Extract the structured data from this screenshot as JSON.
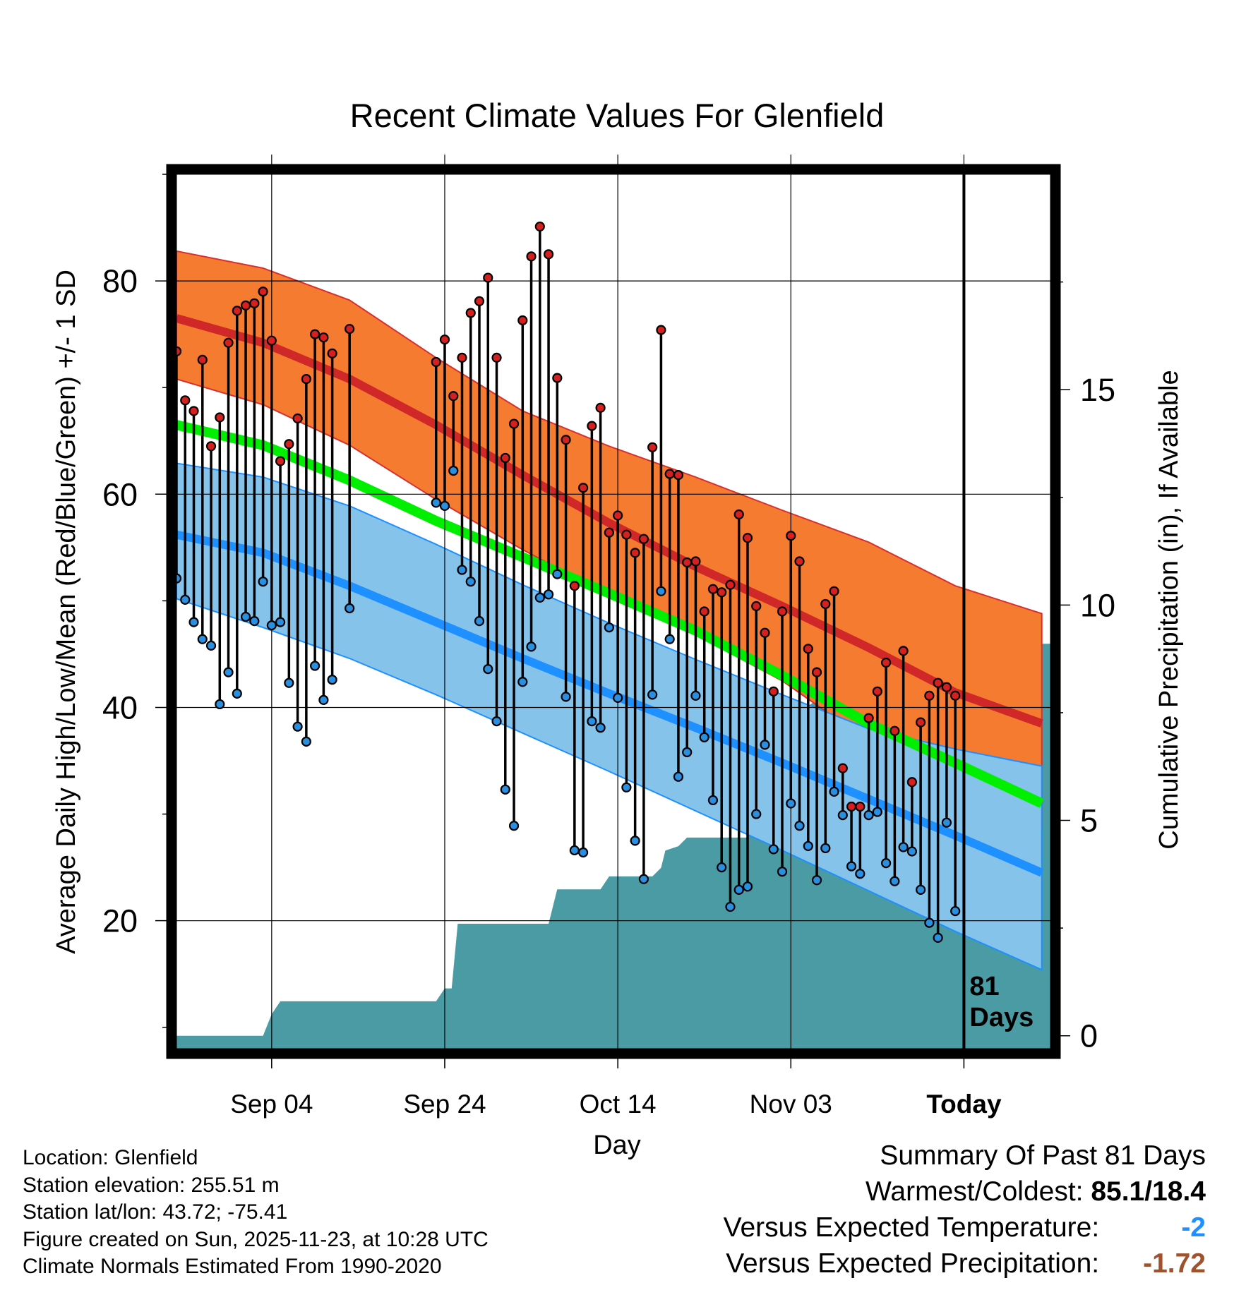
{
  "colors": {
    "high_band": "#F47B30",
    "high_mean": "#D02828",
    "mean_line": "#00EE00",
    "low_band": "#85C3EA",
    "low_mean": "#1E90FF",
    "precip_fill": "#4A9BA3",
    "high_dot": "#D62020",
    "low_dot": "#2A8FE0",
    "below_normal_text": "#1E90FF",
    "precip_deficit_text": "#A0522D"
  },
  "chart_data": {
    "type": "line",
    "title": "Recent Climate Values For Glenfield",
    "xlabel": "Day",
    "ylabel": "Average Daily High/Low/Mean (Red/Blue/Green) +/- 1 SD",
    "y2label": "Cumulative Precipitation (in), If Available",
    "ylim": [
      8,
      90
    ],
    "y2lim": [
      -0.3,
      20
    ],
    "y_ticks": [
      20,
      40,
      60,
      80
    ],
    "y2_ticks": [
      0,
      5,
      10,
      15
    ],
    "x_range": [
      0,
      101
    ],
    "x_ticks": [
      {
        "day": 11,
        "label": "Sep 04"
      },
      {
        "day": 31,
        "label": "Sep 24"
      },
      {
        "day": 51,
        "label": "Oct 14"
      },
      {
        "day": 71,
        "label": "Nov 03"
      },
      {
        "day": 91,
        "label": "Today"
      }
    ],
    "today_marker": {
      "day": 91,
      "label_line1": "81",
      "label_line2": "Days"
    },
    "normals": {
      "days": [
        0,
        10,
        20,
        30,
        40,
        50,
        60,
        70,
        80,
        90,
        100
      ],
      "high_mean": [
        76.5,
        74.2,
        70.8,
        66.5,
        61.8,
        57.3,
        53.2,
        49.5,
        45.6,
        41.4,
        38.5
      ],
      "high_upper": [
        82.8,
        81.2,
        78.2,
        72.8,
        67.8,
        64.5,
        61.6,
        58.5,
        55.5,
        51.4,
        48.8
      ],
      "high_lower": [
        70.8,
        68.4,
        64.6,
        59.5,
        54.8,
        50.5,
        46.8,
        42.5,
        36.8,
        32.8,
        28.8
      ],
      "mean": [
        66.5,
        64.6,
        61.3,
        57.5,
        54.1,
        50.7,
        47.2,
        43.0,
        38.5,
        34.8,
        31.0
      ],
      "low_mean": [
        56.2,
        54.5,
        51.4,
        48.0,
        44.6,
        41.3,
        38.1,
        34.8,
        31.4,
        28.0,
        24.5
      ],
      "low_upper": [
        62.9,
        61.6,
        58.9,
        55.3,
        51.5,
        47.9,
        44.5,
        41.2,
        38.0,
        36.1,
        34.5
      ],
      "low_lower": [
        50.2,
        47.5,
        44.6,
        41.2,
        37.6,
        34.0,
        30.3,
        26.6,
        22.8,
        19.0,
        15.4
      ]
    },
    "daily": [
      {
        "day": 0,
        "high": 73.4,
        "low": 52.1
      },
      {
        "day": 1,
        "high": 68.8,
        "low": 50.1
      },
      {
        "day": 2,
        "high": 67.8,
        "low": 48.0
      },
      {
        "day": 3,
        "high": 72.6,
        "low": 46.4
      },
      {
        "day": 4,
        "high": 64.5,
        "low": 45.8
      },
      {
        "day": 5,
        "high": 67.2,
        "low": 40.3
      },
      {
        "day": 6,
        "high": 74.2,
        "low": 43.3
      },
      {
        "day": 7,
        "high": 77.2,
        "low": 41.3
      },
      {
        "day": 8,
        "high": 77.7,
        "low": 48.5
      },
      {
        "day": 9,
        "high": 77.9,
        "low": 48.1
      },
      {
        "day": 10,
        "high": 79.0,
        "low": 51.8
      },
      {
        "day": 11,
        "high": 74.4,
        "low": 47.7
      },
      {
        "day": 12,
        "high": 63.1,
        "low": 48.0
      },
      {
        "day": 13,
        "high": 64.7,
        "low": 42.3
      },
      {
        "day": 14,
        "high": 67.1,
        "low": 38.2
      },
      {
        "day": 15,
        "high": 70.8,
        "low": 36.8
      },
      {
        "day": 16,
        "high": 75.0,
        "low": 43.9
      },
      {
        "day": 17,
        "high": 74.7,
        "low": 40.7
      },
      {
        "day": 18,
        "high": 73.2,
        "low": 42.6
      },
      {
        "day": 20,
        "high": 75.5,
        "low": 49.3
      },
      {
        "day": 30,
        "high": 72.4,
        "low": 59.2
      },
      {
        "day": 31,
        "high": 74.5,
        "low": 58.9
      },
      {
        "day": 32,
        "high": 69.2,
        "low": 62.2
      },
      {
        "day": 33,
        "high": 72.8,
        "low": 52.9
      },
      {
        "day": 34,
        "high": 77.0,
        "low": 51.8
      },
      {
        "day": 35,
        "high": 78.1,
        "low": 48.1
      },
      {
        "day": 36,
        "high": 80.3,
        "low": 43.6
      },
      {
        "day": 37,
        "high": 72.8,
        "low": 38.7
      },
      {
        "day": 38,
        "high": 63.4,
        "low": 32.3
      },
      {
        "day": 39,
        "high": 66.6,
        "low": 28.9
      },
      {
        "day": 40,
        "high": 76.3,
        "low": 42.4
      },
      {
        "day": 41,
        "high": 82.3,
        "low": 45.7
      },
      {
        "day": 42,
        "high": 85.1,
        "low": 50.3
      },
      {
        "day": 43,
        "high": 82.5,
        "low": 50.6
      },
      {
        "day": 44,
        "high": 70.9,
        "low": 52.5
      },
      {
        "day": 45,
        "high": 65.1,
        "low": 41.0
      },
      {
        "day": 46,
        "high": 51.4,
        "low": 26.6
      },
      {
        "day": 47,
        "high": 60.6,
        "low": 26.4
      },
      {
        "day": 48,
        "high": 66.4,
        "low": 38.7
      },
      {
        "day": 49,
        "high": 68.1,
        "low": 38.1
      },
      {
        "day": 50,
        "high": 56.4,
        "low": 47.5
      },
      {
        "day": 51,
        "high": 58.0,
        "low": 40.9
      },
      {
        "day": 52,
        "high": 56.2,
        "low": 32.5
      },
      {
        "day": 53,
        "high": 54.5,
        "low": 27.5
      },
      {
        "day": 54,
        "high": 55.8,
        "low": 23.9
      },
      {
        "day": 55,
        "high": 64.4,
        "low": 41.2
      },
      {
        "day": 56,
        "high": 75.4,
        "low": 50.9
      },
      {
        "day": 57,
        "high": 61.9,
        "low": 46.4
      },
      {
        "day": 58,
        "high": 61.8,
        "low": 33.5
      },
      {
        "day": 59,
        "high": 53.6,
        "low": 35.8
      },
      {
        "day": 60,
        "high": 53.7,
        "low": 41.1
      },
      {
        "day": 61,
        "high": 49.0,
        "low": 37.2
      },
      {
        "day": 62,
        "high": 51.1,
        "low": 31.3
      },
      {
        "day": 63,
        "high": 50.8,
        "low": 25.0
      },
      {
        "day": 64,
        "high": 51.5,
        "low": 21.3
      },
      {
        "day": 65,
        "high": 58.1,
        "low": 22.9
      },
      {
        "day": 66,
        "high": 55.9,
        "low": 23.2
      },
      {
        "day": 67,
        "high": 49.5,
        "low": 30.0
      },
      {
        "day": 68,
        "high": 47.0,
        "low": 36.5
      },
      {
        "day": 69,
        "high": 41.5,
        "low": 26.7
      },
      {
        "day": 70,
        "high": 49.0,
        "low": 24.6
      },
      {
        "day": 71,
        "high": 56.1,
        "low": 31.0
      },
      {
        "day": 72,
        "high": 53.7,
        "low": 28.9
      },
      {
        "day": 73,
        "high": 45.5,
        "low": 27.0
      },
      {
        "day": 74,
        "high": 43.3,
        "low": 23.8
      },
      {
        "day": 75,
        "high": 49.7,
        "low": 26.8
      },
      {
        "day": 76,
        "high": 50.9,
        "low": 32.1
      },
      {
        "day": 77,
        "high": 34.3,
        "low": 29.9
      },
      {
        "day": 78,
        "high": 30.7,
        "low": 25.1
      },
      {
        "day": 79,
        "high": 30.7,
        "low": 24.4
      },
      {
        "day": 80,
        "high": 39.0,
        "low": 29.9
      },
      {
        "day": 81,
        "high": 41.5,
        "low": 30.2
      },
      {
        "day": 82,
        "high": 44.2,
        "low": 25.4
      },
      {
        "day": 83,
        "high": 37.8,
        "low": 23.7
      },
      {
        "day": 84,
        "high": 45.3,
        "low": 26.9
      },
      {
        "day": 85,
        "high": 33.0,
        "low": 26.5
      },
      {
        "day": 86,
        "high": 38.6,
        "low": 22.9
      },
      {
        "day": 87,
        "high": 41.1,
        "low": 19.8
      },
      {
        "day": 88,
        "high": 42.3,
        "low": 18.4
      },
      {
        "day": 89,
        "high": 41.9,
        "low": 29.2
      },
      {
        "day": 90,
        "high": 41.1,
        "low": 20.9
      }
    ],
    "precip": {
      "days": [
        0,
        10,
        11,
        12,
        30,
        31,
        31.8,
        32.5,
        43,
        44,
        44.5,
        49,
        50,
        55,
        56,
        56.5,
        58,
        59,
        66,
        67,
        67.8,
        69,
        70.5,
        72,
        74,
        76,
        77.5,
        80,
        82,
        84,
        86,
        91,
        101
      ],
      "values": [
        0,
        0,
        0.5,
        0.8,
        0.8,
        1.1,
        1.1,
        2.6,
        2.6,
        3.4,
        3.4,
        3.4,
        3.7,
        3.7,
        3.9,
        4.3,
        4.4,
        4.6,
        4.6,
        6.6,
        6.8,
        6.8,
        7.1,
        7.5,
        7.8,
        8.2,
        8.5,
        8.7,
        8.9,
        9.0,
        9.1,
        9.1,
        9.1
      ]
    }
  },
  "info": {
    "location": "Location: Glenfield",
    "elevation": "Station elevation: 255.51 m",
    "latlon": "Station lat/lon: 43.72; -75.41",
    "created": "Figure created on Sun, 2025-11-23, at 10:28 UTC",
    "normals_period": "Climate Normals Estimated From 1990-2020"
  },
  "summary": {
    "title": "Summary Of Past 81 Days",
    "warmest_coldest_label": "Warmest/Coldest:",
    "warmest_coldest_value": "85.1/18.4",
    "temp_label": "Versus Expected Temperature:",
    "temp_value": "-2",
    "precip_label": "Versus Expected Precipitation:",
    "precip_value": "-1.72"
  }
}
